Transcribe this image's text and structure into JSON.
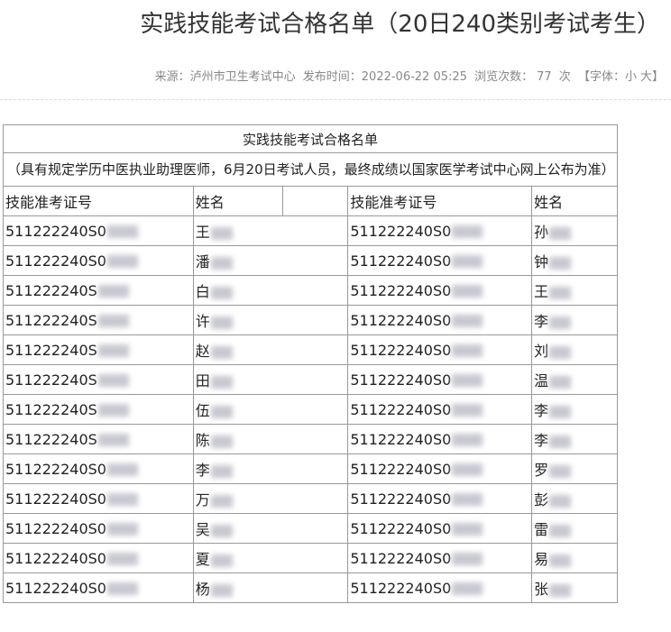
{
  "header": {
    "title": "实践技能考试合格名单（20日240类别考试考生）",
    "meta": {
      "source": "来源：泸州市卫生考试中心",
      "published": "发布时间：2022-06-22 05:25",
      "views_label": "浏览次数：",
      "views": 77,
      "views_unit": "次",
      "font_open": "【字体：",
      "font_small": "小",
      "font_large": "大",
      "font_close": "】"
    }
  },
  "table": {
    "caption": "实践技能考试合格名单",
    "note": "（具有规定学历中医执业助理医师，6月20日考试人员，最终成绩以国家医学考试中心网上公布为准）",
    "headers": [
      "技能准考证号",
      "姓名",
      "技能准考证号",
      "姓名"
    ],
    "rows": [
      [
        "511222240S0",
        "王",
        "511222240S0",
        "孙"
      ],
      [
        "511222240S0",
        "潘",
        "511222240S0",
        "钟"
      ],
      [
        "511222240S",
        "白",
        "511222240S0",
        "王"
      ],
      [
        "511222240S",
        "许",
        "511222240S0",
        "李"
      ],
      [
        "511222240S",
        "赵",
        "511222240S0",
        "刘"
      ],
      [
        "511222240S",
        "田",
        "511222240S0",
        "温"
      ],
      [
        "511222240S",
        "伍",
        "511222240S0",
        "李"
      ],
      [
        "511222240S",
        "陈",
        "511222240S0",
        "李"
      ],
      [
        "511222240S0",
        "李",
        "511222240S0",
        "罗"
      ],
      [
        "511222240S0",
        "万",
        "511222240S0",
        "彭"
      ],
      [
        "511222240S0",
        "吴",
        "511222240S0",
        "雷"
      ],
      [
        "511222240S0",
        "夏",
        "511222240S0",
        "易"
      ],
      [
        "511222240S0",
        "杨",
        "511222240S0",
        "张"
      ]
    ]
  }
}
